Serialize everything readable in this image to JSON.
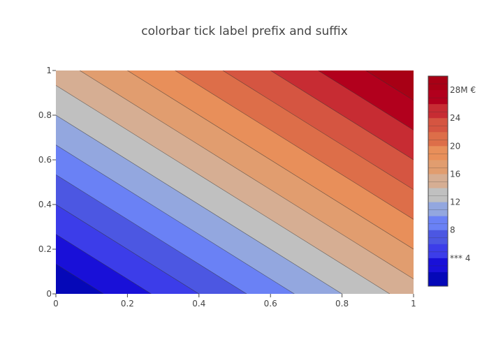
{
  "chart_data": {
    "type": "contour",
    "title": "colorbar tick label prefix and suffix",
    "xlabel": "",
    "ylabel": "",
    "x": [
      0,
      1
    ],
    "y": [
      0,
      1
    ],
    "z_formula": "z = 15 * (x + y)",
    "xlim": [
      0,
      1
    ],
    "ylim": [
      0,
      1
    ],
    "x_ticks": [
      "0",
      "0.2",
      "0.4",
      "0.6",
      "0.8",
      "1"
    ],
    "x_tick_values": [
      0,
      0.2,
      0.4,
      0.6,
      0.8,
      1
    ],
    "y_ticks": [
      "0",
      "0.2",
      "0.4",
      "0.6",
      "0.8",
      "1"
    ],
    "y_tick_values": [
      0,
      0.2,
      0.4,
      0.6,
      0.8,
      1
    ],
    "contours": {
      "start": 0,
      "end": 30,
      "size": 2
    },
    "colorbar": {
      "range": [
        0,
        30
      ],
      "tick_values": [
        4,
        8,
        12,
        16,
        20,
        24,
        28
      ],
      "tick_labels": [
        "*** 4",
        "8",
        "12",
        "16",
        "20",
        "24",
        "28M €"
      ],
      "tickprefix_first": "*** ",
      "ticksuffix_last": "M €"
    },
    "colors": [
      "#0508b8",
      "#1910d8",
      "#3c3de9",
      "#4c57e2",
      "#6a81f5",
      "#93a7df",
      "#c0c0c0",
      "#d6ae93",
      "#e19d6f",
      "#e88f5a",
      "#dd6e49",
      "#d55541",
      "#c72c33",
      "#b2001d",
      "#a80015"
    ],
    "grid": false,
    "legend": "colorbar-right"
  }
}
